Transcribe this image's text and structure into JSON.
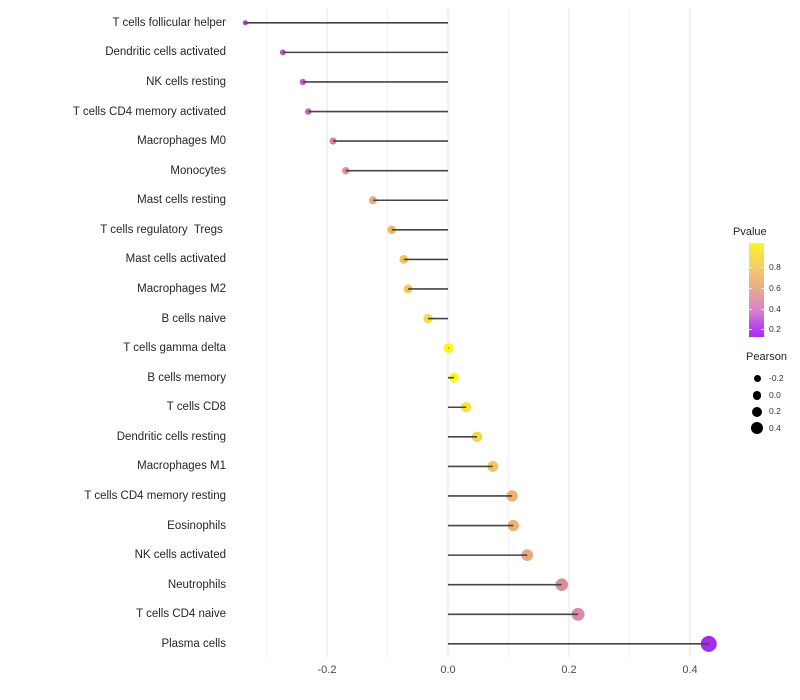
{
  "chart_data": {
    "type": "lollipop",
    "title": "",
    "xlabel": "",
    "ylabel": "",
    "x_ticks": [
      -0.2,
      0.0,
      0.2,
      0.4
    ],
    "x_tick_labels": [
      "-0.2",
      "0.0",
      "0.2",
      "0.4"
    ],
    "x_minor_ticks": [
      -0.3,
      -0.1,
      0.1,
      0.3
    ],
    "xlim": [
      -0.355,
      0.475
    ],
    "grid": true,
    "legend_position": "right",
    "points": [
      {
        "label": "T cells follicular helper",
        "pearson": -0.335,
        "color": "#A73FD2"
      },
      {
        "label": "Dendritic cells activated",
        "pearson": -0.273,
        "color": "#BB50C5"
      },
      {
        "label": "NK cells resting",
        "pearson": -0.24,
        "color": "#C45AB9"
      },
      {
        "label": "T cells CD4 memory activated",
        "pearson": -0.231,
        "color": "#C75FB3"
      },
      {
        "label": "Macrophages M0",
        "pearson": -0.19,
        "color": "#D37D99"
      },
      {
        "label": "Monocytes",
        "pearson": -0.169,
        "color": "#DB8B8D"
      },
      {
        "label": "Mast cells resting",
        "pearson": -0.124,
        "color": "#E6A873"
      },
      {
        "label": "T cells regulatory  Tregs ",
        "pearson": -0.093,
        "color": "#EAB75F"
      },
      {
        "label": "Mast cells activated",
        "pearson": -0.073,
        "color": "#EEC14D"
      },
      {
        "label": "Macrophages M2",
        "pearson": -0.066,
        "color": "#EFC549"
      },
      {
        "label": "B cells naive",
        "pearson": -0.033,
        "color": "#F4DA35"
      },
      {
        "label": "T cells gamma delta",
        "pearson": 0.001,
        "color": "#FBF70A"
      },
      {
        "label": "B cells memory",
        "pearson": 0.01,
        "color": "#FBF70A"
      },
      {
        "label": "T cells CD8",
        "pearson": 0.03,
        "color": "#F6E12B"
      },
      {
        "label": "Dendritic cells resting",
        "pearson": 0.048,
        "color": "#F3D53A"
      },
      {
        "label": "Macrophages M1",
        "pearson": 0.074,
        "color": "#EFC256"
      },
      {
        "label": "T cells CD4 memory resting",
        "pearson": 0.106,
        "color": "#EBAE6F"
      },
      {
        "label": "Eosinophils",
        "pearson": 0.108,
        "color": "#EBAE6F"
      },
      {
        "label": "NK cells activated",
        "pearson": 0.131,
        "color": "#E8A37D"
      },
      {
        "label": "Neutrophils",
        "pearson": 0.188,
        "color": "#DB8894"
      },
      {
        "label": "T cells CD4 naive",
        "pearson": 0.215,
        "color": "#D884A9"
      },
      {
        "label": "Plasma cells",
        "pearson": 0.431,
        "color": "#9D23E8"
      }
    ],
    "legend": {
      "pvalue": {
        "title": "Pvalue",
        "tick_labels": [
          "0.8",
          "0.6",
          "0.4",
          "0.2"
        ],
        "gradient_stops": [
          "#FAF32B 0%",
          "#F2CE66 25%",
          "#E8A98E 50%",
          "#D584C7 72%",
          "#B84BE8 88%",
          "#A92BF2 100%"
        ]
      },
      "pearson": {
        "title": "Pearson",
        "tick_labels": [
          "-0.2",
          "0.0",
          "0.2",
          "0.4"
        ],
        "tick_values": [
          -0.2,
          0.0,
          0.2,
          0.4
        ]
      }
    },
    "style": {
      "stem_color": "#454545",
      "major_grid_color": "#e3e3e3",
      "minor_grid_color": "#f0f0f0"
    }
  }
}
